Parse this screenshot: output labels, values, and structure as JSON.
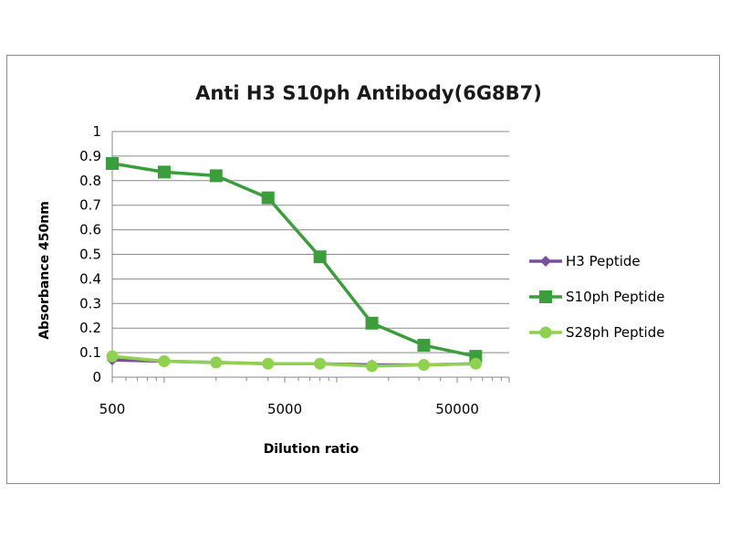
{
  "chart_data": {
    "type": "line",
    "title": "Anti H3 S10ph Antibody(6G8B7)",
    "xlabel": "Dilution ratio",
    "ylabel": "Absorbance 450nm",
    "x_scale": "log",
    "xlim": [
      500,
      100000
    ],
    "ylim": [
      0,
      1
    ],
    "y_ticks": [
      "0",
      "0.1",
      "0.2",
      "0.3",
      "0.4",
      "0.5",
      "0.6",
      "0.7",
      "0.8",
      "0.9",
      "1"
    ],
    "x_ticks": [
      "500",
      "5000",
      "50000"
    ],
    "grid": "horizontal",
    "legend_position": "right",
    "x": [
      500,
      1000,
      2000,
      4000,
      8000,
      16000,
      32000,
      64000
    ],
    "series": [
      {
        "name": "H3 Peptide",
        "color": "#7b4fa0",
        "marker": "diamond",
        "values": [
          0.07,
          0.065,
          0.06,
          0.055,
          0.055,
          0.05,
          0.05,
          0.055
        ]
      },
      {
        "name": "S10ph Peptide",
        "color": "#3a9e3a",
        "marker": "square",
        "values": [
          0.87,
          0.835,
          0.82,
          0.73,
          0.49,
          0.22,
          0.13,
          0.085
        ]
      },
      {
        "name": "S28ph Peptide",
        "color": "#8ed24f",
        "marker": "circle",
        "values": [
          0.085,
          0.065,
          0.06,
          0.055,
          0.055,
          0.045,
          0.05,
          0.055
        ]
      }
    ]
  }
}
